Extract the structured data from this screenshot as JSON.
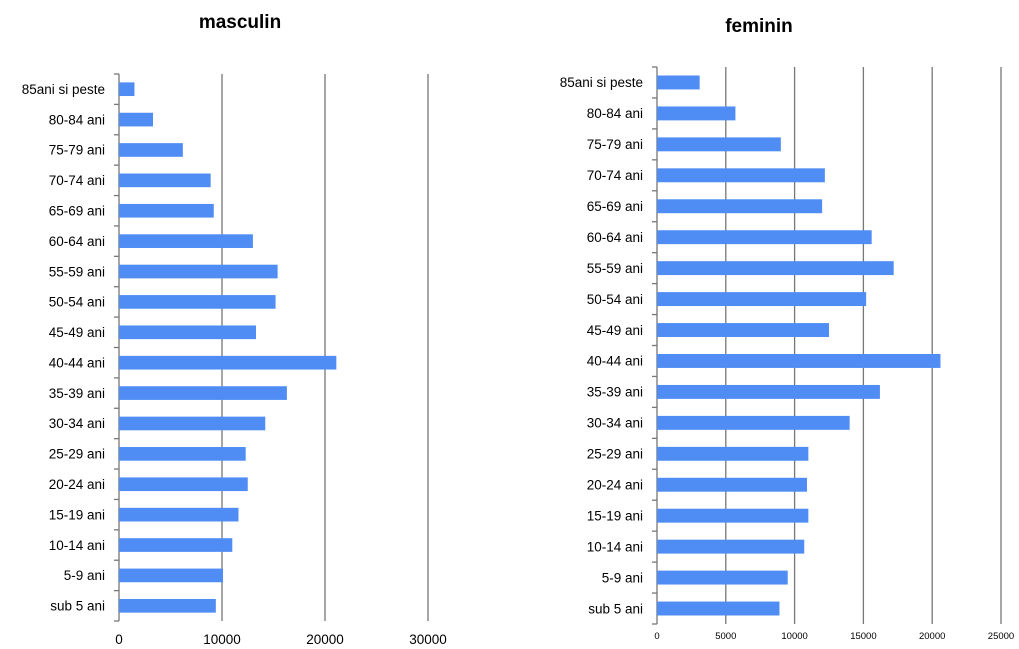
{
  "colors": {
    "bar": "#4f8df5",
    "grid": "#777777",
    "axis": "#777777"
  },
  "chart_data": [
    {
      "type": "bar",
      "orientation": "horizontal",
      "title": "masculin",
      "categories": [
        "sub 5 ani",
        "5-9 ani",
        "10-14 ani",
        "15-19 ani",
        "20-24 ani",
        "25-29 ani",
        "30-34 ani",
        "35-39 ani",
        "40-44 ani",
        "45-49 ani",
        "50-54 ani",
        "55-59 ani",
        "60-64 ani",
        "65-69 ani",
        "70-74 ani",
        "75-79 ani",
        "80-84 ani",
        "85ani si peste"
      ],
      "values": [
        9400,
        10100,
        11000,
        11600,
        12500,
        12300,
        14200,
        16300,
        21100,
        13300,
        15200,
        15400,
        13000,
        9200,
        8900,
        6200,
        3300,
        1500
      ],
      "xlim": [
        0,
        30000
      ],
      "xticks": [
        0,
        10000,
        20000,
        30000
      ],
      "grid": true
    },
    {
      "type": "bar",
      "orientation": "horizontal",
      "title": "feminin",
      "categories": [
        "sub 5 ani",
        "5-9 ani",
        "10-14 ani",
        "15-19 ani",
        "20-24 ani",
        "25-29 ani",
        "30-34 ani",
        "35-39 ani",
        "40-44 ani",
        "45-49 ani",
        "50-54 ani",
        "55-59 ani",
        "60-64 ani",
        "65-69 ani",
        "70-74 ani",
        "75-79 ani",
        "80-84 ani",
        "85ani si peste"
      ],
      "values": [
        8900,
        9500,
        10700,
        11000,
        10900,
        11000,
        14000,
        16200,
        20600,
        12500,
        15200,
        17200,
        15600,
        12000,
        12200,
        9000,
        5700,
        3100
      ],
      "xlim": [
        0,
        25000
      ],
      "xticks": [
        0,
        5000,
        10000,
        15000,
        20000,
        25000
      ],
      "grid": true
    }
  ]
}
